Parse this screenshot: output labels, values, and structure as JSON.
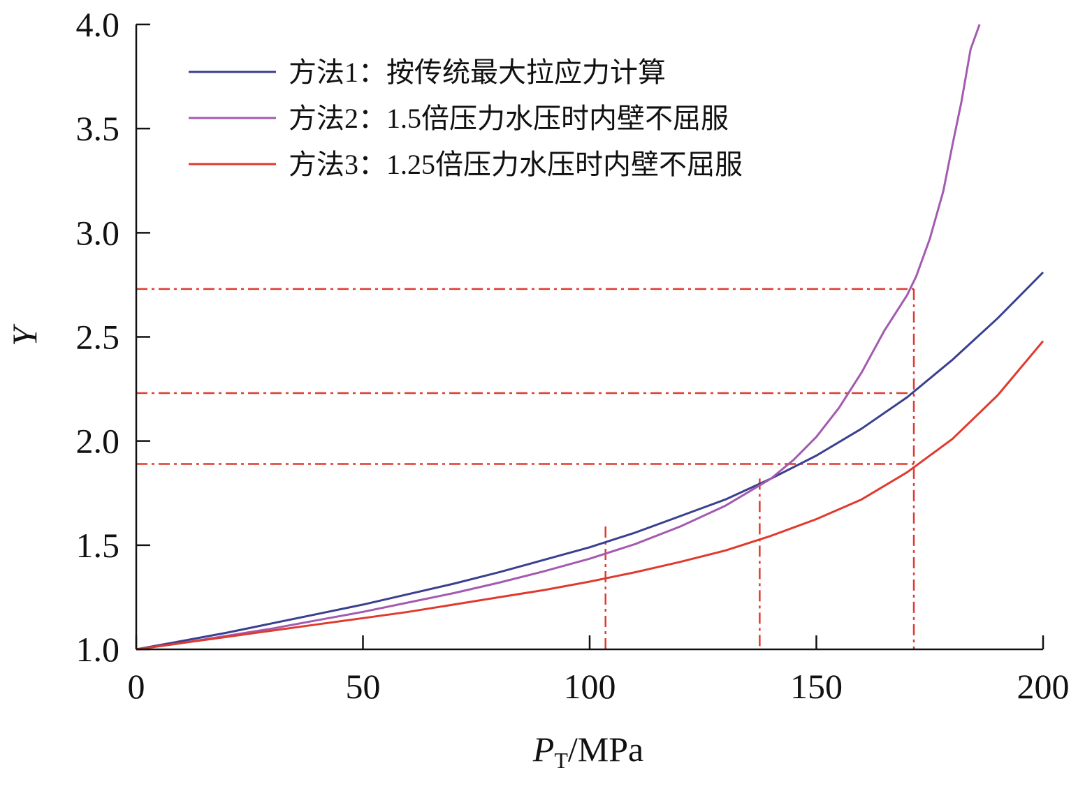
{
  "chart_data": {
    "type": "line",
    "xlabel_main": "P",
    "xlabel_sub": "T",
    "xlabel_unit": "/MPa",
    "ylabel": "Y",
    "xlim": [
      0,
      200
    ],
    "ylim": [
      1.0,
      4.0
    ],
    "x_ticks": [
      0,
      50,
      100,
      150,
      200
    ],
    "x_tick_labels": [
      "0",
      "50",
      "100",
      "150",
      "200"
    ],
    "y_ticks": [
      1.0,
      1.5,
      2.0,
      2.5,
      3.0,
      3.5,
      4.0
    ],
    "y_tick_labels": [
      "1.0",
      "1.5",
      "2.0",
      "2.5",
      "3.0",
      "3.5",
      "4.0"
    ],
    "legend_position": "top-left",
    "series": [
      {
        "name": "方法1：按传统最大拉应力计算",
        "color": "#3a3f8f",
        "x": [
          0,
          10,
          20,
          30,
          40,
          50,
          60,
          70,
          80,
          90,
          100,
          110,
          120,
          130,
          140,
          150,
          160,
          170,
          180,
          190,
          200
        ],
        "y": [
          1.0,
          1.04,
          1.08,
          1.125,
          1.17,
          1.215,
          1.265,
          1.315,
          1.37,
          1.43,
          1.49,
          1.56,
          1.64,
          1.72,
          1.82,
          1.93,
          2.06,
          2.21,
          2.39,
          2.59,
          2.81
        ]
      },
      {
        "name": "方法2：1.5倍压力水压时内壁不屈服",
        "color": "#a35ab0",
        "x": [
          0,
          10,
          20,
          30,
          40,
          50,
          60,
          70,
          80,
          90,
          100,
          110,
          120,
          130,
          140,
          145,
          150,
          155,
          160,
          165,
          170,
          172,
          175,
          178,
          180,
          182,
          184,
          186
        ],
        "y": [
          1.0,
          1.03,
          1.065,
          1.1,
          1.14,
          1.18,
          1.225,
          1.27,
          1.32,
          1.375,
          1.435,
          1.505,
          1.59,
          1.69,
          1.82,
          1.91,
          2.02,
          2.16,
          2.33,
          2.53,
          2.7,
          2.79,
          2.97,
          3.2,
          3.42,
          3.63,
          3.88,
          4.0
        ]
      },
      {
        "name": "方法3：1.25倍压力水压时内壁不屈服",
        "color": "#e03a2e",
        "x": [
          0,
          10,
          20,
          30,
          40,
          50,
          60,
          70,
          80,
          90,
          100,
          110,
          120,
          130,
          140,
          150,
          160,
          170,
          180,
          190,
          200
        ],
        "y": [
          1.0,
          1.03,
          1.06,
          1.09,
          1.12,
          1.15,
          1.18,
          1.215,
          1.25,
          1.285,
          1.325,
          1.37,
          1.42,
          1.475,
          1.545,
          1.625,
          1.72,
          1.85,
          2.01,
          2.22,
          2.48
        ]
      }
    ],
    "reference_lines": {
      "color": "#e03a2e",
      "horizontal": [
        {
          "y": 2.73,
          "x_end": 171.5
        },
        {
          "y": 2.23,
          "x_end": 171.5
        },
        {
          "y": 1.89,
          "x_end": 171.5
        }
      ],
      "vertical": [
        {
          "x": 103.5,
          "y_top": 1.59
        },
        {
          "x": 137.5,
          "y_top": 1.82
        },
        {
          "x": 171.5,
          "y_top": 2.73
        }
      ]
    }
  }
}
